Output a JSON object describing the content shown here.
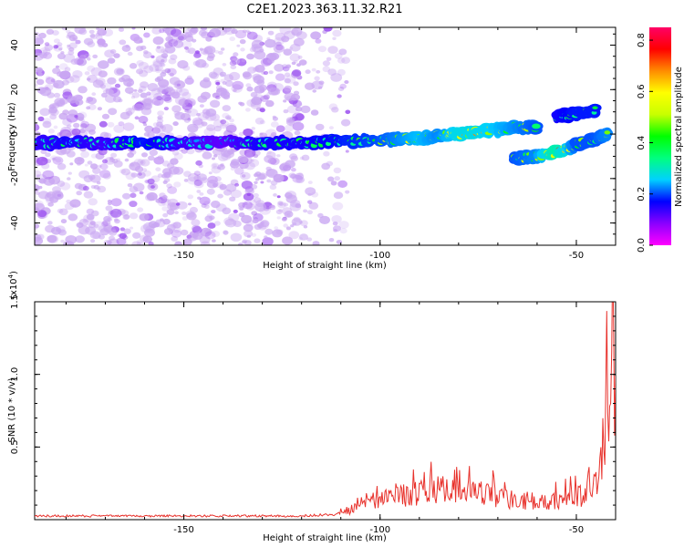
{
  "title": "C2E1.2023.363.11.32.R21",
  "colors": {
    "snr_line": "#e8322c",
    "spectrum_background_speckle": "#c9a6f2",
    "colorbar": [
      "#ff00ff",
      "#8a00ff",
      "#0000ff",
      "#00d0ff",
      "#00ff7f",
      "#00ff00",
      "#c8ff00",
      "#ffff00",
      "#ff8c00",
      "#ff0000",
      "#ff0066"
    ]
  },
  "chart_data": [
    {
      "type": "heatmap",
      "id": "spectrogram",
      "xlabel": "Height of straight line (km)",
      "ylabel": "Frequency (Hz)",
      "xlim": [
        -188,
        -40
      ],
      "ylim": [
        -50,
        48
      ],
      "xticks": [
        -150,
        -100,
        -50
      ],
      "xtick_labels": [
        "-150",
        "-100",
        "-50"
      ],
      "yticks": [
        40,
        20,
        0,
        -20,
        -40
      ],
      "ytick_labels": [
        "40",
        "20",
        "0",
        "-20",
        "-40"
      ],
      "colorbar": {
        "label": "Normalized spectral amplitude",
        "range": [
          0.0,
          0.85
        ],
        "ticks": [
          0.0,
          0.2,
          0.4,
          0.6,
          0.8
        ],
        "tick_labels": [
          "0.0",
          "0.2",
          "0.4",
          "0.6",
          "0.8"
        ]
      },
      "main_band": [
        {
          "x": -188,
          "f": -4,
          "amp": 0.3
        },
        {
          "x": -180,
          "f": -4,
          "amp": 0.35
        },
        {
          "x": -170,
          "f": -4,
          "amp": 0.3
        },
        {
          "x": -160,
          "f": -4,
          "amp": 0.4
        },
        {
          "x": -150,
          "f": -4,
          "amp": 0.3
        },
        {
          "x": -140,
          "f": -4,
          "amp": 0.25
        },
        {
          "x": -130,
          "f": -4,
          "amp": 0.35
        },
        {
          "x": -120,
          "f": -4,
          "amp": 0.35
        },
        {
          "x": -110,
          "f": -3,
          "amp": 0.4
        },
        {
          "x": -100,
          "f": -3,
          "amp": 0.45
        },
        {
          "x": -95,
          "f": -2,
          "amp": 0.5
        },
        {
          "x": -90,
          "f": -2,
          "amp": 0.55
        },
        {
          "x": -85,
          "f": -1,
          "amp": 0.5
        },
        {
          "x": -80,
          "f": 0,
          "amp": 0.6
        },
        {
          "x": -75,
          "f": 1,
          "amp": 0.6
        },
        {
          "x": -70,
          "f": 2,
          "amp": 0.55
        },
        {
          "x": -65,
          "f": 3,
          "amp": 0.5
        },
        {
          "x": -60,
          "f": 3,
          "amp": 0.45
        }
      ],
      "upper_branch": [
        {
          "x": -55,
          "f": 8,
          "amp": 0.35
        },
        {
          "x": -50,
          "f": 9,
          "amp": 0.4
        },
        {
          "x": -45,
          "f": 11,
          "amp": 0.4
        }
      ],
      "lower_branch": [
        {
          "x": -66,
          "f": -11,
          "amp": 0.45
        },
        {
          "x": -60,
          "f": -10,
          "amp": 0.5
        },
        {
          "x": -55,
          "f": -8,
          "amp": 0.7
        },
        {
          "x": -50,
          "f": -5,
          "amp": 0.45
        },
        {
          "x": -45,
          "f": -2,
          "amp": 0.45
        },
        {
          "x": -42,
          "f": 0,
          "amp": 0.5
        }
      ]
    },
    {
      "type": "line",
      "id": "snr",
      "xlabel": "Height of straight line (km)",
      "ylabel": "SNR (10 * v/v)",
      "y_multiplier_label": "(x10",
      "y_multiplier_exp": "4",
      "y_multiplier_close": ")",
      "xlim": [
        -188,
        -40
      ],
      "ylim": [
        0.0,
        1.5
      ],
      "xticks": [
        -150,
        -100,
        -50
      ],
      "xtick_labels": [
        "-150",
        "-100",
        "-50"
      ],
      "yticks": [
        0.5,
        1.0,
        1.5
      ],
      "ytick_labels": [
        "0.5",
        "1.0",
        "1.5"
      ],
      "series": [
        {
          "x": [
            -188,
            -180,
            -170,
            -160,
            -150,
            -140,
            -130,
            -120,
            -112,
            -108,
            -104,
            -100,
            -96,
            -92,
            -88,
            -84,
            -80,
            -76,
            -72,
            -68,
            -64,
            -60,
            -56,
            -52,
            -48,
            -46,
            -44,
            -43,
            -42,
            -41,
            -40
          ],
          "y": [
            0.03,
            0.03,
            0.03,
            0.03,
            0.03,
            0.03,
            0.03,
            0.03,
            0.04,
            0.07,
            0.12,
            0.15,
            0.18,
            0.18,
            0.2,
            0.22,
            0.18,
            0.2,
            0.18,
            0.15,
            0.14,
            0.12,
            0.14,
            0.15,
            0.18,
            0.22,
            0.35,
            0.55,
            0.85,
            1.4,
            1.05
          ]
        }
      ]
    }
  ]
}
